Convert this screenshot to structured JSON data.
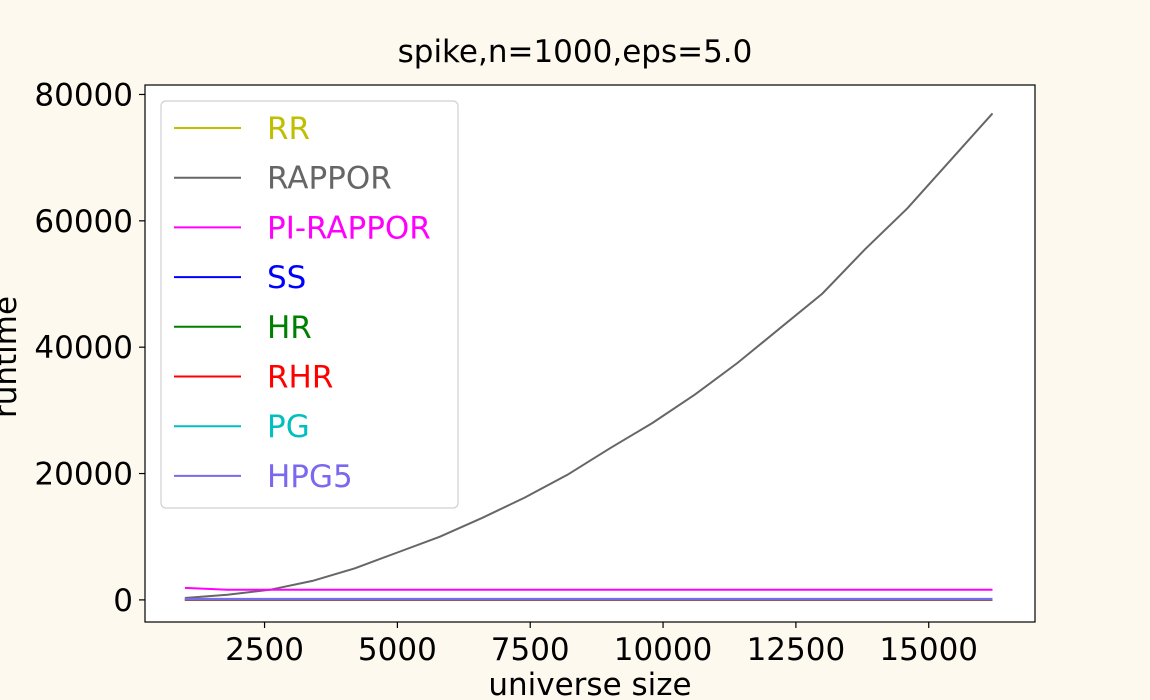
{
  "chart_data": {
    "type": "line",
    "title": "spike,n=1000,eps=5.0",
    "xlabel": "universe size",
    "ylabel": "runtime",
    "xlim": [
      250,
      17000
    ],
    "ylim": [
      -3500,
      81500
    ],
    "xticks": [
      2500,
      5000,
      7500,
      10000,
      12500,
      15000
    ],
    "yticks": [
      0,
      20000,
      40000,
      60000,
      80000
    ],
    "xtick_labels": [
      "2500",
      "5000",
      "7500",
      "10000",
      "12500",
      "15000"
    ],
    "ytick_labels": [
      "0",
      "20000",
      "40000",
      "60000",
      "80000"
    ],
    "grid": false,
    "legend_position": "upper left",
    "x": [
      1000,
      1800,
      2600,
      3400,
      4200,
      5000,
      5800,
      6600,
      7400,
      8200,
      9000,
      9800,
      10600,
      11400,
      12200,
      13000,
      13800,
      14600,
      15400,
      16200
    ],
    "series": [
      {
        "name": "RR",
        "color": "#bfbf00",
        "values": [
          50,
          50,
          50,
          50,
          50,
          50,
          50,
          50,
          50,
          50,
          50,
          50,
          50,
          50,
          50,
          50,
          50,
          50,
          50,
          50
        ]
      },
      {
        "name": "RAPPOR",
        "color": "#666666",
        "values": [
          300,
          800,
          1600,
          3000,
          5000,
          7500,
          10000,
          13000,
          16200,
          19800,
          24000,
          28000,
          32500,
          37500,
          43000,
          48500,
          55500,
          62000,
          69500,
          77000
        ]
      },
      {
        "name": "PI-RAPPOR",
        "color": "#ff00ff",
        "values": [
          1900,
          1600,
          1600,
          1600,
          1600,
          1600,
          1600,
          1600,
          1600,
          1600,
          1600,
          1600,
          1600,
          1600,
          1600,
          1600,
          1600,
          1600,
          1600,
          1600
        ]
      },
      {
        "name": "SS",
        "color": "#0000ff",
        "values": [
          50,
          50,
          50,
          50,
          50,
          50,
          50,
          50,
          50,
          50,
          50,
          50,
          50,
          50,
          50,
          50,
          50,
          50,
          50,
          50
        ]
      },
      {
        "name": "HR",
        "color": "#008000",
        "values": [
          30,
          30,
          30,
          30,
          30,
          30,
          30,
          30,
          30,
          30,
          30,
          30,
          30,
          30,
          30,
          30,
          30,
          30,
          30,
          30
        ]
      },
      {
        "name": "RHR",
        "color": "#ff0000",
        "values": [
          20,
          20,
          20,
          20,
          20,
          20,
          20,
          20,
          20,
          20,
          20,
          20,
          20,
          20,
          20,
          20,
          20,
          20,
          20,
          20
        ]
      },
      {
        "name": "PG",
        "color": "#00bfbf",
        "values": [
          100,
          100,
          100,
          100,
          100,
          100,
          100,
          100,
          100,
          100,
          100,
          100,
          100,
          100,
          100,
          100,
          100,
          100,
          100,
          100
        ]
      },
      {
        "name": "HPG5",
        "color": "#7b68ee",
        "values": [
          150,
          150,
          150,
          150,
          150,
          150,
          150,
          150,
          150,
          150,
          150,
          150,
          150,
          150,
          150,
          150,
          150,
          150,
          150,
          150
        ]
      }
    ]
  }
}
